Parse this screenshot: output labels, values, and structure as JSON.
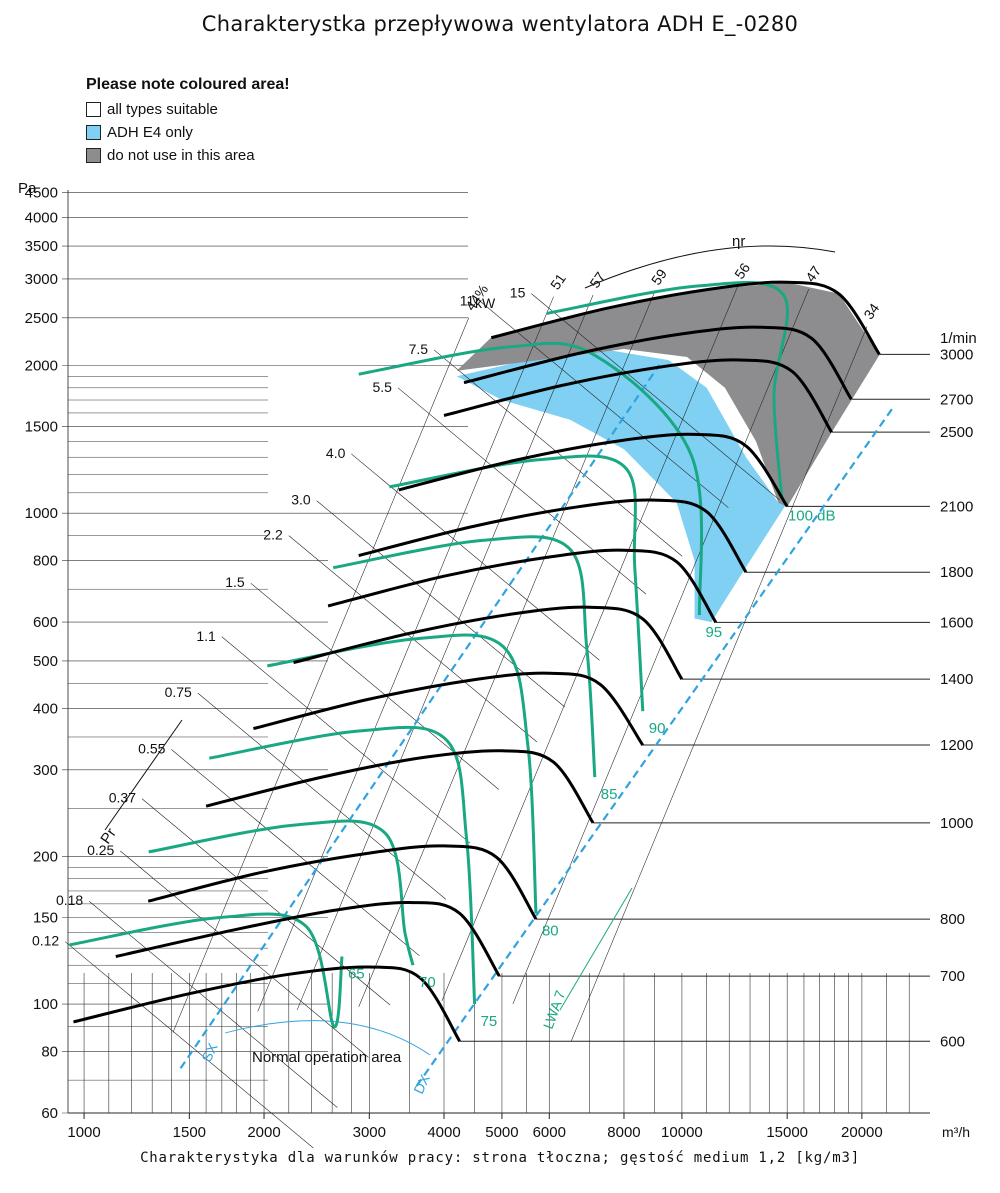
{
  "page": {
    "title": "Charakterystka przepływowa wentylatora ADH E_-0280",
    "caption": "Charakterystyka dla warunków pracy: strona tłoczna; gęstość medium 1,2 [kg/m3]"
  },
  "legend": {
    "title": "Please note coloured area!",
    "items": [
      {
        "label": "all types suitable",
        "color": "#ffffff"
      },
      {
        "label": "ADH E4 only",
        "color": "#7fd0f3"
      },
      {
        "label": "do not use in this area",
        "color": "#8d8d8f"
      }
    ]
  },
  "colors": {
    "curve": "#000000",
    "sound": "#1aa883",
    "system": "#2ea3e0",
    "grid": "#333333"
  },
  "chart_data": {
    "type": "line",
    "xlabel": "m³/h",
    "ylabel": "Pa",
    "x_scale": "log",
    "y_scale": "log",
    "xlim": [
      940,
      26000
    ],
    "ylim": [
      60,
      5000
    ],
    "x_ticks": [
      1000,
      1500,
      2000,
      3000,
      4000,
      5000,
      6000,
      8000,
      10000,
      15000,
      20000
    ],
    "x_tick_labels": [
      "1000",
      "1500",
      "2000",
      "3000",
      "4000",
      "5000",
      "6000",
      "8000",
      "10000",
      "15000",
      "20000"
    ],
    "y_ticks": [
      60,
      80,
      100,
      150,
      200,
      300,
      400,
      500,
      600,
      800,
      1000,
      1500,
      2000,
      2500,
      3000,
      3500,
      4000,
      4500
    ],
    "y_tick_labels": [
      "60",
      "80",
      "100",
      "150",
      "200",
      "300",
      "400",
      "500",
      "600",
      "800",
      "1000",
      "1500",
      "2000",
      "2500",
      "3000",
      "3500",
      "4000",
      "4500"
    ],
    "speed_unit": "1/min",
    "speed_curves": [
      {
        "rpm": 600,
        "label": "600",
        "points": [
          [
            960,
            92
          ],
          [
            1500,
            105
          ],
          [
            2200,
            115
          ],
          [
            3000,
            119
          ],
          [
            3650,
            113
          ],
          [
            4250,
            84
          ]
        ]
      },
      {
        "rpm": 700,
        "label": "700",
        "points": [
          [
            1130,
            125
          ],
          [
            1800,
            142
          ],
          [
            2600,
            155
          ],
          [
            3500,
            161
          ],
          [
            4250,
            153
          ],
          [
            4950,
            114
          ]
        ]
      },
      {
        "rpm": 800,
        "label": "800",
        "points": [
          [
            1280,
            162
          ],
          [
            2000,
            186
          ],
          [
            3000,
            203
          ],
          [
            4000,
            210
          ],
          [
            4900,
            199
          ],
          [
            5700,
            149
          ]
        ]
      },
      {
        "rpm": 1000,
        "label": "1000",
        "points": [
          [
            1600,
            253
          ],
          [
            2500,
            290
          ],
          [
            3700,
            318
          ],
          [
            5000,
            328
          ],
          [
            6100,
            311
          ],
          [
            7100,
            234
          ]
        ]
      },
      {
        "rpm": 1200,
        "label": "1200",
        "points": [
          [
            1920,
            364
          ],
          [
            3000,
            418
          ],
          [
            4500,
            458
          ],
          [
            6000,
            472
          ],
          [
            7300,
            448
          ],
          [
            8600,
            337
          ]
        ]
      },
      {
        "rpm": 1400,
        "label": "1400",
        "points": [
          [
            2240,
            496
          ],
          [
            3500,
            569
          ],
          [
            5200,
            623
          ],
          [
            7000,
            643
          ],
          [
            8600,
            609
          ],
          [
            10000,
            459
          ]
        ]
      },
      {
        "rpm": 1600,
        "label": "1600",
        "points": [
          [
            2560,
            647
          ],
          [
            4000,
            744
          ],
          [
            6000,
            814
          ],
          [
            8000,
            840
          ],
          [
            9800,
            796
          ],
          [
            11400,
            599
          ]
        ]
      },
      {
        "rpm": 1800,
        "label": "1800",
        "points": [
          [
            2880,
            820
          ],
          [
            4500,
            941
          ],
          [
            6700,
            1030
          ],
          [
            9000,
            1063
          ],
          [
            11000,
            1007
          ],
          [
            12800,
            758
          ]
        ]
      },
      {
        "rpm": 2100,
        "label": "2100",
        "points": [
          [
            3360,
            1115
          ],
          [
            5250,
            1281
          ],
          [
            7800,
            1402
          ],
          [
            10500,
            1447
          ],
          [
            12800,
            1371
          ],
          [
            15000,
            1032
          ]
        ]
      },
      {
        "rpm": 2500,
        "label": "2500",
        "points": [
          [
            4000,
            1581
          ],
          [
            6250,
            1816
          ],
          [
            9300,
            1988
          ],
          [
            12500,
            2051
          ],
          [
            15300,
            1943
          ],
          [
            17800,
            1462
          ]
        ]
      },
      {
        "rpm": 2700,
        "label": "2700",
        "points": [
          [
            4320,
            1844
          ],
          [
            6750,
            2118
          ],
          [
            10000,
            2318
          ],
          [
            13500,
            2392
          ],
          [
            16500,
            2267
          ],
          [
            19200,
            1706
          ]
        ]
      },
      {
        "rpm": 3000,
        "label": "3000",
        "points": [
          [
            4800,
            2277
          ],
          [
            7500,
            2615
          ],
          [
            11200,
            2862
          ],
          [
            15000,
            2953
          ],
          [
            18300,
            2798
          ],
          [
            21400,
            2106
          ]
        ]
      }
    ],
    "power_lines": {
      "unit": "kW",
      "labels": [
        "0.12",
        "0.18",
        "0.25",
        "0.37",
        "0.55",
        "0.75",
        "1.1",
        "1.5",
        "2.2",
        "3.0",
        "4.0",
        "5.5",
        "7.5",
        "11",
        "15"
      ]
    },
    "efficiency": {
      "label": "ηr",
      "labels": [
        "44%",
        "51",
        "57",
        "59",
        "56",
        "47",
        "34"
      ]
    },
    "sound_power": {
      "label": "LWA 7",
      "levels": [
        "65",
        "70",
        "75",
        "80",
        "85",
        "90",
        "95",
        "100 dB"
      ]
    },
    "system_lines": [
      "SX",
      "DX"
    ],
    "annotations": {
      "normal_area": "Normal operation area",
      "pressure_axis": "Pr"
    }
  }
}
